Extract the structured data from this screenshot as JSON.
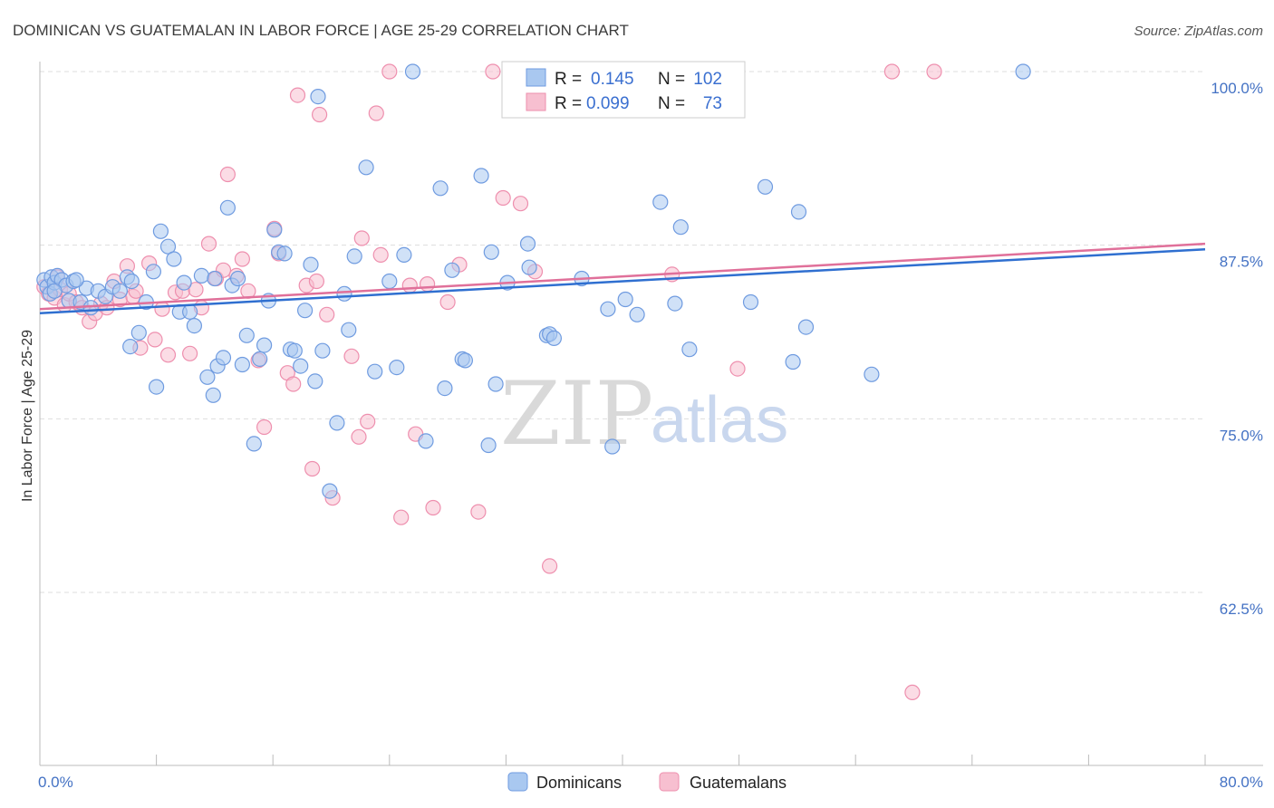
{
  "title": "DOMINICAN VS GUATEMALAN IN LABOR FORCE | AGE 25-29 CORRELATION CHART",
  "source": "Source: ZipAtlas.com",
  "watermark": {
    "zip": "ZIP",
    "atlas": "atlas"
  },
  "legend": {
    "rows": [
      {
        "r_label": "R =",
        "r_value": "0.145",
        "n_label": "N =",
        "n_value": "102"
      },
      {
        "r_label": "R =",
        "r_value": "0.099",
        "n_label": "N =",
        "n_value": "73"
      }
    ]
  },
  "bottom_legend": [
    "Dominicans",
    "Guatemalans"
  ],
  "colors": {
    "dominicans_fill": "#a9c8f0",
    "dominicans_stroke": "#6f9be0",
    "dominicans_line": "#2f6fd0",
    "guatemalans_fill": "#f7bfd0",
    "guatemalans_stroke": "#ee8fae",
    "guatemalans_line": "#e0709a",
    "tick_text": "#4472c4",
    "grid": "#dddddd"
  },
  "chart_data": {
    "type": "scatter",
    "title": "DOMINICAN VS GUATEMALAN IN LABOR FORCE | AGE 25-29 CORRELATION CHART",
    "xlabel": "",
    "ylabel": "In Labor Force | Age 25-29",
    "xlim": [
      0,
      80
    ],
    "ylim": [
      52,
      101
    ],
    "x_tick_labels": [
      "0.0%",
      "80.0%"
    ],
    "y_ticks": [
      62.5,
      75.0,
      87.5,
      100.0
    ],
    "y_tick_labels": [
      "62.5%",
      "75.0%",
      "87.5%",
      "100.0%"
    ],
    "grid": true,
    "legend_position": "top-center",
    "series": [
      {
        "name": "Dominicans",
        "r": 0.145,
        "n": 102,
        "trend": [
          [
            0,
            82.6
          ],
          [
            80,
            87.2
          ]
        ],
        "points": [
          [
            0.3,
            85.0
          ],
          [
            0.5,
            84.5
          ],
          [
            0.7,
            84.0
          ],
          [
            0.8,
            85.2
          ],
          [
            1.0,
            84.8
          ],
          [
            1.2,
            85.3
          ],
          [
            1.5,
            85.0
          ],
          [
            1.8,
            84.6
          ],
          [
            2.0,
            83.5
          ],
          [
            2.3,
            84.9
          ],
          [
            2.8,
            83.4
          ],
          [
            3.2,
            84.4
          ],
          [
            3.5,
            83.0
          ],
          [
            4.0,
            84.2
          ],
          [
            4.5,
            83.8
          ],
          [
            5.0,
            84.5
          ],
          [
            5.5,
            84.2
          ],
          [
            6.0,
            85.2
          ],
          [
            6.2,
            80.2
          ],
          [
            6.8,
            81.2
          ],
          [
            7.3,
            83.4
          ],
          [
            7.8,
            85.6
          ],
          [
            8.0,
            77.3
          ],
          [
            8.3,
            88.5
          ],
          [
            8.8,
            87.4
          ],
          [
            9.2,
            86.5
          ],
          [
            9.6,
            82.7
          ],
          [
            9.9,
            84.8
          ],
          [
            10.3,
            82.7
          ],
          [
            10.6,
            81.7
          ],
          [
            11.1,
            85.3
          ],
          [
            11.5,
            78.0
          ],
          [
            11.9,
            76.7
          ],
          [
            12.2,
            78.8
          ],
          [
            12.6,
            79.4
          ],
          [
            12.9,
            90.2
          ],
          [
            13.2,
            84.6
          ],
          [
            13.6,
            85.1
          ],
          [
            13.9,
            78.9
          ],
          [
            14.2,
            81.0
          ],
          [
            14.7,
            73.2
          ],
          [
            15.1,
            79.3
          ],
          [
            15.4,
            80.3
          ],
          [
            15.7,
            83.5
          ],
          [
            16.1,
            88.6
          ],
          [
            16.4,
            87.0
          ],
          [
            16.8,
            86.9
          ],
          [
            17.2,
            80.0
          ],
          [
            17.5,
            79.9
          ],
          [
            17.9,
            78.8
          ],
          [
            18.2,
            82.8
          ],
          [
            18.6,
            86.1
          ],
          [
            18.9,
            77.7
          ],
          [
            19.1,
            98.2
          ],
          [
            19.4,
            79.9
          ],
          [
            19.9,
            69.8
          ],
          [
            20.4,
            74.7
          ],
          [
            20.9,
            84.0
          ],
          [
            21.2,
            81.4
          ],
          [
            21.6,
            86.7
          ],
          [
            22.4,
            93.1
          ],
          [
            23.0,
            78.4
          ],
          [
            24.0,
            84.9
          ],
          [
            24.5,
            78.7
          ],
          [
            25.0,
            86.8
          ],
          [
            25.6,
            100.0
          ],
          [
            26.5,
            73.4
          ],
          [
            27.5,
            91.6
          ],
          [
            27.8,
            77.2
          ],
          [
            28.3,
            85.7
          ],
          [
            29.0,
            79.3
          ],
          [
            29.2,
            79.2
          ],
          [
            30.3,
            92.5
          ],
          [
            30.8,
            73.1
          ],
          [
            31.0,
            87.0
          ],
          [
            31.3,
            77.5
          ],
          [
            32.1,
            84.8
          ],
          [
            33.5,
            87.6
          ],
          [
            33.6,
            85.9
          ],
          [
            34.8,
            81.0
          ],
          [
            35.0,
            81.1
          ],
          [
            35.3,
            80.8
          ],
          [
            37.2,
            85.1
          ],
          [
            39.0,
            82.9
          ],
          [
            39.3,
            73.0
          ],
          [
            40.2,
            83.6
          ],
          [
            41.0,
            82.5
          ],
          [
            42.6,
            90.6
          ],
          [
            43.6,
            83.3
          ],
          [
            44.0,
            88.8
          ],
          [
            44.6,
            80.0
          ],
          [
            48.8,
            83.4
          ],
          [
            49.8,
            91.7
          ],
          [
            51.7,
            79.1
          ],
          [
            52.1,
            89.9
          ],
          [
            52.6,
            81.6
          ],
          [
            57.1,
            78.2
          ],
          [
            67.5,
            100.0
          ],
          [
            1.0,
            84.2
          ],
          [
            2.5,
            85.0
          ],
          [
            6.3,
            84.9
          ],
          [
            12.0,
            85.1
          ]
        ]
      },
      {
        "name": "Guatemalans",
        "r": 0.099,
        "n": 73,
        "trend": [
          [
            0,
            82.9
          ],
          [
            80,
            87.6
          ]
        ],
        "points": [
          [
            0.3,
            84.5
          ],
          [
            0.6,
            84.0
          ],
          [
            1.0,
            83.7
          ],
          [
            1.4,
            84.3
          ],
          [
            1.7,
            83.2
          ],
          [
            2.0,
            84.0
          ],
          [
            2.5,
            83.4
          ],
          [
            2.9,
            83.0
          ],
          [
            3.4,
            82.0
          ],
          [
            3.8,
            82.6
          ],
          [
            4.2,
            83.3
          ],
          [
            4.6,
            83.0
          ],
          [
            5.1,
            84.9
          ],
          [
            5.5,
            83.6
          ],
          [
            6.0,
            86.0
          ],
          [
            6.4,
            83.8
          ],
          [
            6.9,
            80.1
          ],
          [
            7.5,
            86.2
          ],
          [
            7.9,
            80.7
          ],
          [
            8.4,
            82.9
          ],
          [
            8.8,
            79.6
          ],
          [
            9.3,
            84.1
          ],
          [
            9.8,
            84.2
          ],
          [
            10.3,
            79.7
          ],
          [
            10.7,
            84.3
          ],
          [
            11.1,
            83.0
          ],
          [
            11.6,
            87.6
          ],
          [
            12.1,
            85.1
          ],
          [
            12.6,
            85.7
          ],
          [
            12.9,
            92.6
          ],
          [
            13.5,
            85.3
          ],
          [
            13.9,
            86.5
          ],
          [
            14.3,
            84.2
          ],
          [
            15.0,
            79.2
          ],
          [
            15.4,
            74.4
          ],
          [
            16.1,
            88.7
          ],
          [
            16.4,
            86.9
          ],
          [
            17.0,
            78.3
          ],
          [
            17.4,
            77.5
          ],
          [
            17.7,
            98.3
          ],
          [
            18.3,
            84.6
          ],
          [
            18.7,
            71.4
          ],
          [
            19.0,
            84.9
          ],
          [
            19.2,
            96.9
          ],
          [
            19.7,
            82.5
          ],
          [
            20.1,
            69.3
          ],
          [
            21.4,
            79.5
          ],
          [
            21.9,
            73.7
          ],
          [
            22.1,
            88.0
          ],
          [
            22.5,
            74.8
          ],
          [
            23.1,
            97.0
          ],
          [
            23.4,
            86.8
          ],
          [
            24.0,
            100.0
          ],
          [
            24.8,
            67.9
          ],
          [
            25.4,
            84.6
          ],
          [
            25.8,
            73.9
          ],
          [
            26.6,
            84.7
          ],
          [
            27.0,
            68.6
          ],
          [
            28.0,
            83.4
          ],
          [
            28.8,
            86.1
          ],
          [
            30.1,
            68.3
          ],
          [
            31.1,
            100.0
          ],
          [
            31.8,
            90.9
          ],
          [
            33.0,
            90.5
          ],
          [
            34.0,
            85.6
          ],
          [
            35.0,
            64.4
          ],
          [
            43.4,
            85.4
          ],
          [
            47.9,
            78.6
          ],
          [
            58.5,
            100.0
          ],
          [
            59.9,
            55.3
          ],
          [
            61.4,
            100.0
          ],
          [
            1.2,
            85.2
          ],
          [
            6.6,
            84.2
          ]
        ]
      }
    ]
  }
}
